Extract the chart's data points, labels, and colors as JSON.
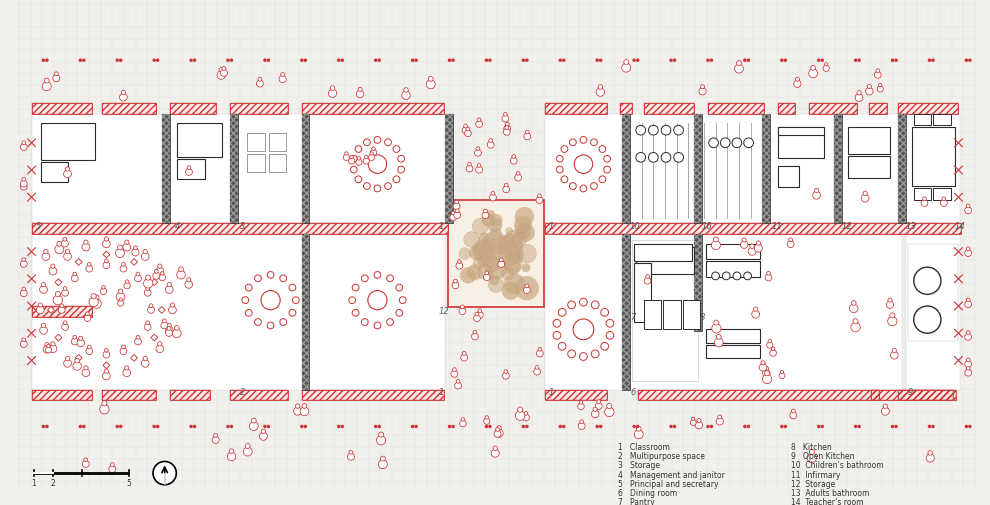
{
  "bg_color": "#f2f0ed",
  "wall_color": "#2a2a2a",
  "red_color": "#cc3333",
  "tan_color": "#c8a882",
  "legend_items_left": [
    "1   Classroom",
    "2   Multipurpose space",
    "3   Storage",
    "4   Management and janitor",
    "5   Principal and secretary",
    "6   Dining room",
    "7   Pantry"
  ],
  "legend_items_right": [
    "8   Kitchen",
    "9   Open Kitchen",
    "10  Children’s bathroom",
    "11  Infirmary",
    "12  Storage",
    "13  Adults bathroom",
    "14  Teacher’s room"
  ]
}
